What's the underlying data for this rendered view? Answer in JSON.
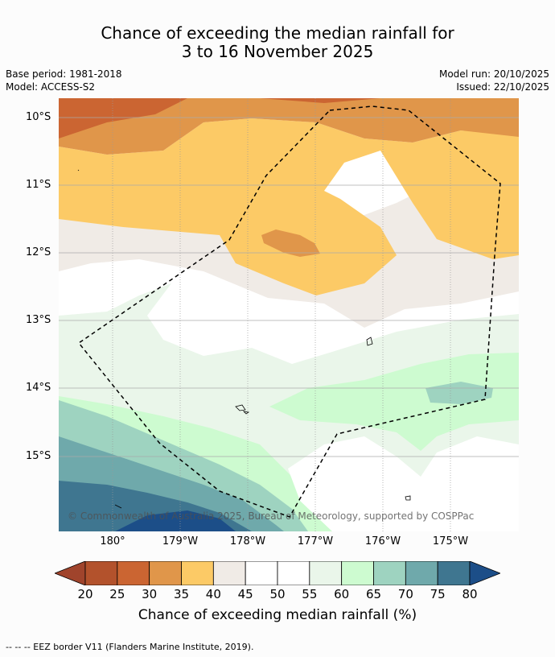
{
  "title_line1": "Chance of exceeding the median rainfall for",
  "title_line2": "3 to 16 November 2025",
  "meta": {
    "base_period": "Base period: 1981-2018",
    "model": "Model: ACCESS-S2",
    "model_run": "Model run: 20/10/2025",
    "issued": "Issued: 22/10/2025"
  },
  "map": {
    "lat_labels": [
      "10°S",
      "11°S",
      "12°S",
      "13°S",
      "14°S",
      "15°S"
    ],
    "lon_labels": [
      "180°",
      "179°W",
      "178°W",
      "177°W",
      "176°W",
      "175°W"
    ],
    "credit": "© Commonwealth of Australia 2025, Bureau of Meteorology, supported by COSPPac",
    "boundary_icon": "eez-boundary-dashed",
    "islands_icon": "island-outline"
  },
  "colorbar": {
    "ticks": [
      "20",
      "25",
      "30",
      "35",
      "40",
      "45",
      "50",
      "55",
      "60",
      "65",
      "70",
      "75",
      "80"
    ],
    "colors": [
      "#a0442c",
      "#b3522c",
      "#cb6532",
      "#e0964a",
      "#fcca66",
      "#f0ebe6",
      "#ffffff",
      "#ffffff",
      "#eaf6ea",
      "#cdfbd0",
      "#9ed3c0",
      "#6fa9ab",
      "#3f7690",
      "#1c4e88"
    ],
    "label": "Chance of exceeding median rainfall (%)"
  },
  "footer": "--  --  -- EEZ border V11 (Flanders Marine Institute, 2019)."
}
